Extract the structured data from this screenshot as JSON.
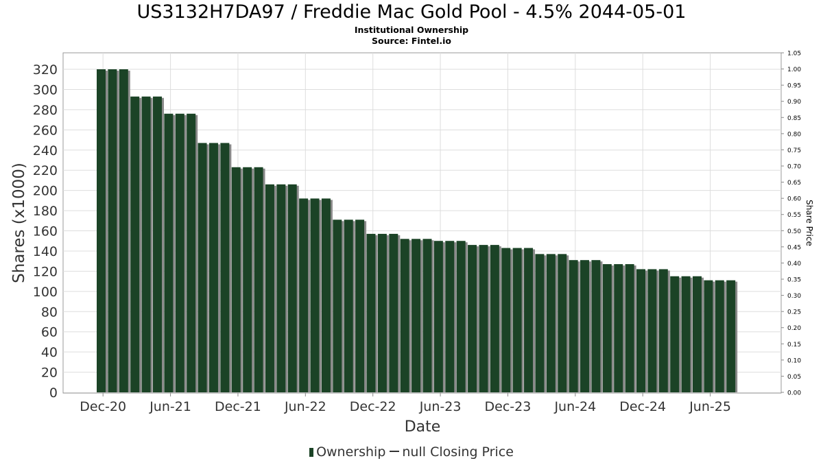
{
  "title": "US3132H7DA97 / Freddie Mac Gold Pool - 4.5% 2044-05-01",
  "subtitle_line1": "Institutional Ownership",
  "subtitle_line2": "Source: Fintel.io",
  "legend": {
    "ownership_label": "Ownership",
    "price_label": "null Closing Price"
  },
  "colors": {
    "bar": "#1b4326",
    "bar_shadow": "#8a8a8a",
    "grid": "#dddddd",
    "axis": "#888888"
  },
  "chart_data": {
    "type": "bar",
    "title": "US3132H7DA97 / Freddie Mac Gold Pool - 4.5% 2044-05-01",
    "xlabel": "Date",
    "ylabel": "Shares (x1000)",
    "y2label": "Share Price",
    "ylim": [
      0,
      335
    ],
    "y2lim": [
      0,
      1.05
    ],
    "yticks": [
      0,
      20,
      40,
      60,
      80,
      100,
      120,
      140,
      160,
      180,
      200,
      220,
      240,
      260,
      280,
      300,
      320
    ],
    "y2ticks": [
      "0.00",
      "0.05",
      "0.10",
      "0.15",
      "0.20",
      "0.25",
      "0.30",
      "0.35",
      "0.40",
      "0.45",
      "0.50",
      "0.55",
      "0.60",
      "0.65",
      "0.70",
      "0.75",
      "0.80",
      "0.85",
      "0.90",
      "0.95",
      "1.00",
      "1.05"
    ],
    "xticks": [
      {
        "label": "Dec-20",
        "index": 0.5
      },
      {
        "label": "Jun-21",
        "index": 6.5
      },
      {
        "label": "Dec-21",
        "index": 12.5
      },
      {
        "label": "Jun-22",
        "index": 18.5
      },
      {
        "label": "Dec-22",
        "index": 24.5
      },
      {
        "label": "Jun-23",
        "index": 30.5
      },
      {
        "label": "Dec-23",
        "index": 36.5
      },
      {
        "label": "Jun-24",
        "index": 42.5
      },
      {
        "label": "Dec-24",
        "index": 48.5
      },
      {
        "label": "Jun-25",
        "index": 54.5
      }
    ],
    "x_slots": 59.1,
    "series": [
      {
        "name": "Ownership",
        "values": [
          320,
          320,
          320,
          293,
          293,
          293,
          276,
          276,
          276,
          247,
          247,
          247,
          223,
          223,
          223,
          206,
          206,
          206,
          192,
          192,
          192,
          171,
          171,
          171,
          157,
          157,
          157,
          152,
          152,
          152,
          150,
          150,
          150,
          146,
          146,
          146,
          143,
          143,
          143,
          137,
          137,
          137,
          131,
          131,
          131,
          127,
          127,
          127,
          122,
          122,
          122,
          115,
          115,
          115,
          111,
          111,
          111
        ]
      }
    ]
  }
}
